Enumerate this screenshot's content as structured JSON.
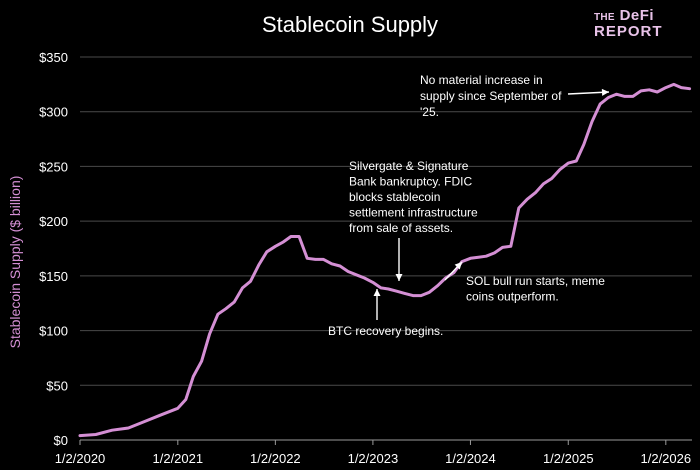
{
  "chart_data": {
    "type": "line",
    "title": "Stablecoin Supply",
    "ylabel": "Stablecoin Supply ($ billion)",
    "xlabel": "",
    "ylim": [
      0,
      350
    ],
    "yticks": [
      0,
      50,
      100,
      150,
      200,
      250,
      300,
      350
    ],
    "ytick_labels": [
      "$0",
      "$50",
      "$100",
      "$150",
      "$200",
      "$250",
      "$300",
      "$350"
    ],
    "xlim": [
      "2020-01-02",
      "2026-04-10"
    ],
    "xticks": [
      "2020-01-02",
      "2021-01-02",
      "2022-01-02",
      "2023-01-02",
      "2024-01-02",
      "2025-01-02",
      "2026-01-02"
    ],
    "xtick_labels": [
      "1/2/2020",
      "1/2/2021",
      "1/2/2022",
      "1/2/2023",
      "1/2/2024",
      "1/2/2025",
      "1/2/2026"
    ],
    "grid": "horizontal",
    "line_color": "#d48fd4",
    "series": [
      {
        "x": [
          "2020-01-02",
          "2020-03-01",
          "2020-05-01",
          "2020-07-01",
          "2020-09-01",
          "2020-11-01",
          "2021-01-02",
          "2021-02-01",
          "2021-03-01",
          "2021-04-01",
          "2021-05-01",
          "2021-06-01",
          "2021-07-01",
          "2021-08-01",
          "2021-09-01",
          "2021-10-01",
          "2021-11-01",
          "2021-12-01",
          "2022-01-02",
          "2022-02-01",
          "2022-03-01",
          "2022-04-01",
          "2022-05-01",
          "2022-06-01",
          "2022-07-01",
          "2022-08-01",
          "2022-09-01",
          "2022-10-01",
          "2022-11-01",
          "2022-12-01",
          "2023-01-02",
          "2023-02-01",
          "2023-03-01",
          "2023-04-01",
          "2023-05-01",
          "2023-06-01",
          "2023-07-01",
          "2023-08-01",
          "2023-09-01",
          "2023-10-01",
          "2023-11-01",
          "2023-12-01",
          "2024-01-02",
          "2024-02-01",
          "2024-03-01",
          "2024-04-01",
          "2024-05-01",
          "2024-06-01",
          "2024-07-01",
          "2024-08-01",
          "2024-09-01",
          "2024-10-01",
          "2024-11-01",
          "2024-12-01",
          "2025-01-02",
          "2025-02-01",
          "2025-03-01",
          "2025-04-01",
          "2025-05-01",
          "2025-06-01",
          "2025-07-01",
          "2025-08-01",
          "2025-09-01",
          "2025-10-01",
          "2025-11-01",
          "2025-12-01",
          "2026-01-02",
          "2026-02-01",
          "2026-03-01",
          "2026-04-01"
        ],
        "values": [
          4,
          5,
          9,
          11,
          17,
          23,
          29,
          37,
          58,
          72,
          97,
          115,
          120,
          126,
          139,
          145,
          160,
          172,
          177,
          181,
          186,
          186,
          166,
          165,
          165,
          161,
          159,
          154,
          151,
          148,
          144,
          139,
          138,
          136,
          134,
          132,
          132,
          135,
          141,
          148,
          153,
          163,
          166,
          167,
          168,
          171,
          176,
          177,
          212,
          220,
          226,
          234,
          239,
          247,
          253,
          255,
          270,
          291,
          307,
          313,
          316,
          314,
          314,
          319,
          320,
          318,
          322,
          325,
          322,
          321
        ]
      }
    ],
    "annotations": [
      {
        "lines": [
          "No material increase in",
          "supply since September of",
          "'25."
        ]
      },
      {
        "lines": [
          "Silvergate & Signature",
          "Bank bankruptcy. FDIC",
          "blocks stablecoin",
          "settlement infrastructure",
          "from sale of assets."
        ]
      },
      {
        "lines": [
          "SOL bull run starts, meme",
          "coins outperform."
        ]
      },
      {
        "lines": [
          "BTC recovery begins."
        ]
      }
    ]
  },
  "logo": {
    "line1_small": "THE",
    "line1_big": "DeFi",
    "line2": "REPORT"
  }
}
